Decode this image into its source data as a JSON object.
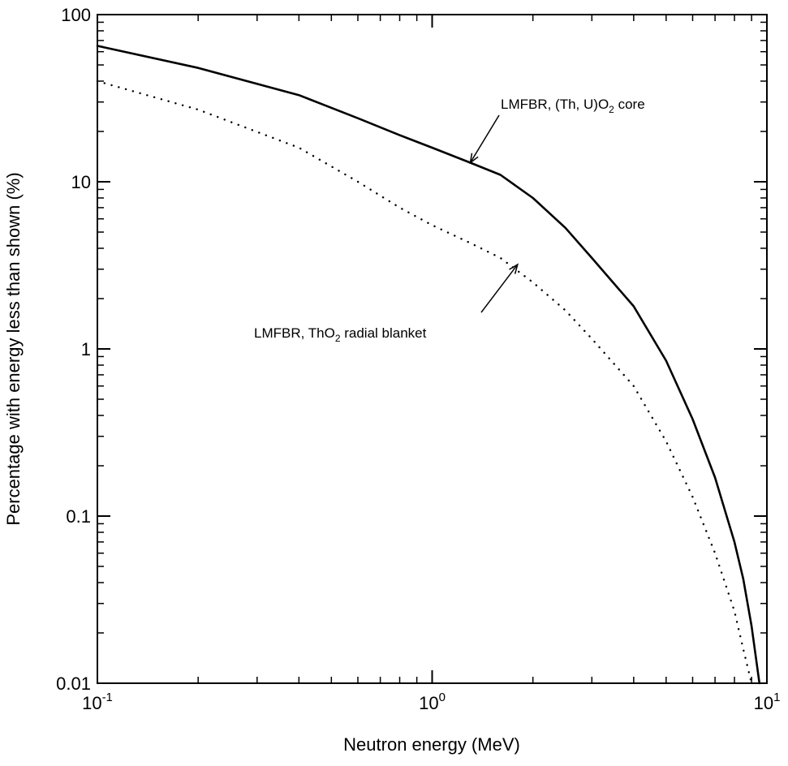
{
  "chart_data": {
    "type": "line",
    "title": "",
    "xlabel": "Neutron energy (MeV)",
    "ylabel": "Percentage with energy less than shown (%)",
    "xscale": "log",
    "yscale": "log",
    "xlim": [
      0.1,
      10
    ],
    "ylim": [
      0.01,
      100
    ],
    "x_ticks": [
      {
        "value": 0.1,
        "base": "10",
        "exp": "-1"
      },
      {
        "value": 1,
        "base": "10",
        "exp": "0"
      },
      {
        "value": 10,
        "base": "10",
        "exp": "1"
      }
    ],
    "y_ticks": [
      {
        "value": 0.01,
        "label": "0.01"
      },
      {
        "value": 0.1,
        "label": "0.1"
      },
      {
        "value": 1,
        "label": "1"
      },
      {
        "value": 10,
        "label": "10"
      },
      {
        "value": 100,
        "label": "100"
      }
    ],
    "grid": false,
    "series": [
      {
        "style": "solid",
        "x": [
          0.1,
          0.2,
          0.4,
          0.6,
          0.8,
          1.0,
          1.3,
          1.6,
          2.0,
          2.5,
          3.0,
          4.0,
          5.0,
          6.0,
          7.0,
          8.0,
          8.5,
          9.0,
          9.5
        ],
        "y": [
          65,
          48,
          33,
          24,
          19,
          16,
          13,
          11,
          8,
          5.3,
          3.5,
          1.8,
          0.85,
          0.38,
          0.17,
          0.07,
          0.042,
          0.022,
          0.01
        ]
      },
      {
        "style": "dotted",
        "x": [
          0.1,
          0.2,
          0.4,
          0.6,
          0.8,
          1.0,
          1.3,
          1.6,
          2.0,
          2.5,
          3.0,
          4.0,
          5.0,
          6.0,
          7.0,
          8.0,
          8.5,
          9.0
        ],
        "y": [
          40,
          27,
          16,
          10,
          7,
          5.5,
          4.3,
          3.5,
          2.5,
          1.7,
          1.15,
          0.6,
          0.28,
          0.13,
          0.06,
          0.027,
          0.016,
          0.01
        ]
      }
    ],
    "annotations": [
      {
        "series": 0,
        "text_before": "LMFBR, (Th, U)O",
        "subscript": "2",
        "text_after": " core",
        "arrow_x": 1.3,
        "arrow_y": 13
      },
      {
        "series": 1,
        "text_before": "LMFBR, ThO",
        "subscript": "2",
        "text_after": " radial blanket",
        "arrow_x": 1.8,
        "arrow_y": 3.2
      }
    ]
  }
}
